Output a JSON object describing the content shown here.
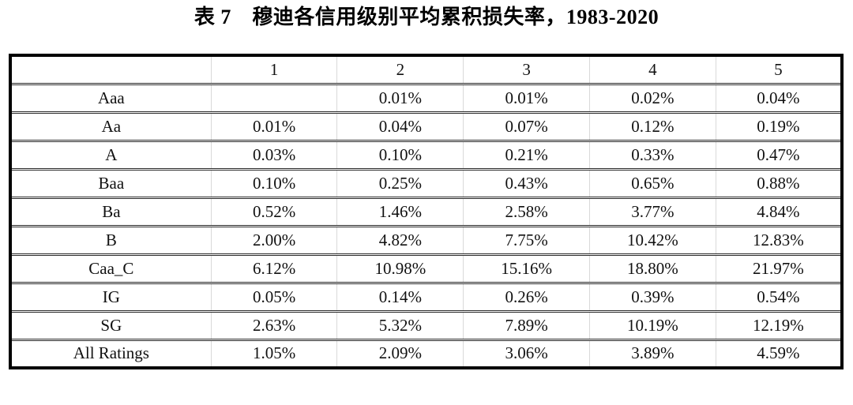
{
  "title": "表 7　穆迪各信用级别平均累积损失率，1983-2020",
  "table": {
    "columns": [
      "",
      "1",
      "2",
      "3",
      "4",
      "5"
    ],
    "rows": [
      {
        "label": "Aaa",
        "values": [
          "",
          "0.01%",
          "0.01%",
          "0.02%",
          "0.04%"
        ]
      },
      {
        "label": "Aa",
        "values": [
          "0.01%",
          "0.04%",
          "0.07%",
          "0.12%",
          "0.19%"
        ]
      },
      {
        "label": "A",
        "values": [
          "0.03%",
          "0.10%",
          "0.21%",
          "0.33%",
          "0.47%"
        ]
      },
      {
        "label": "Baa",
        "values": [
          "0.10%",
          "0.25%",
          "0.43%",
          "0.65%",
          "0.88%"
        ]
      },
      {
        "label": "Ba",
        "values": [
          "0.52%",
          "1.46%",
          "2.58%",
          "3.77%",
          "4.84%"
        ]
      },
      {
        "label": "B",
        "values": [
          "2.00%",
          "4.82%",
          "7.75%",
          "10.42%",
          "12.83%"
        ]
      },
      {
        "label": "Caa_C",
        "values": [
          "6.12%",
          "10.98%",
          "15.16%",
          "18.80%",
          "21.97%"
        ]
      },
      {
        "label": "IG",
        "values": [
          "0.05%",
          "0.14%",
          "0.26%",
          "0.39%",
          "0.54%"
        ]
      },
      {
        "label": "SG",
        "values": [
          "2.63%",
          "5.32%",
          "7.89%",
          "10.19%",
          "12.19%"
        ]
      },
      {
        "label": "All Ratings",
        "values": [
          "1.05%",
          "2.09%",
          "3.06%",
          "3.89%",
          "4.59%"
        ]
      }
    ]
  },
  "chart_data": {
    "type": "table",
    "title": "表 7　穆迪各信用级别平均累积损失率，1983-2020",
    "columns": [
      "",
      "1",
      "2",
      "3",
      "4",
      "5"
    ],
    "rows": [
      [
        "Aaa",
        "",
        "0.01%",
        "0.01%",
        "0.02%",
        "0.04%"
      ],
      [
        "Aa",
        "0.01%",
        "0.04%",
        "0.07%",
        "0.12%",
        "0.19%"
      ],
      [
        "A",
        "0.03%",
        "0.10%",
        "0.21%",
        "0.33%",
        "0.47%"
      ],
      [
        "Baa",
        "0.10%",
        "0.25%",
        "0.43%",
        "0.65%",
        "0.88%"
      ],
      [
        "Ba",
        "0.52%",
        "1.46%",
        "2.58%",
        "3.77%",
        "4.84%"
      ],
      [
        "B",
        "2.00%",
        "4.82%",
        "7.75%",
        "10.42%",
        "12.83%"
      ],
      [
        "Caa_C",
        "6.12%",
        "10.98%",
        "15.16%",
        "18.80%",
        "21.97%"
      ],
      [
        "IG",
        "0.05%",
        "0.14%",
        "0.26%",
        "0.39%",
        "0.54%"
      ],
      [
        "SG",
        "2.63%",
        "5.32%",
        "7.89%",
        "10.19%",
        "12.19%"
      ],
      [
        "All Ratings",
        "1.05%",
        "2.09%",
        "3.06%",
        "3.89%",
        "4.59%"
      ]
    ]
  },
  "colors": {
    "text": "#111111",
    "row_rule": "#2a2a2a",
    "outer_border": "#000000",
    "column_rule": "#d9d9d9",
    "background": "#ffffff"
  }
}
